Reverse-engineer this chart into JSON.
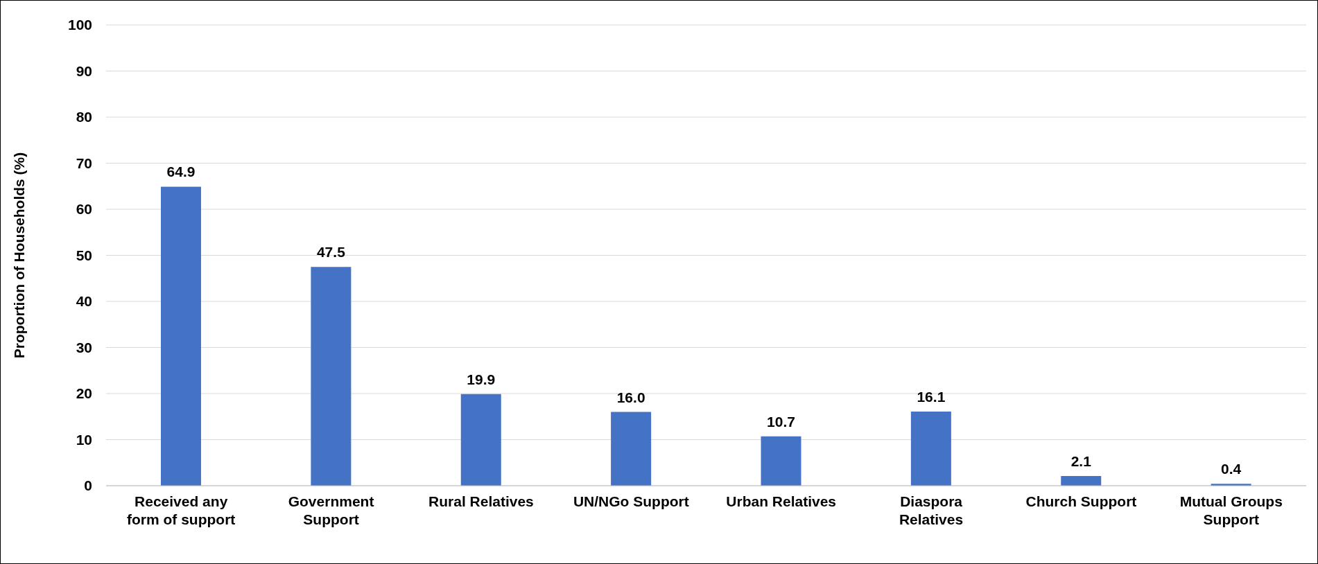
{
  "chart_data": {
    "type": "bar",
    "ylabel": "Proportion of Households (%)",
    "categories": [
      "Received any form of support",
      "Government Support",
      "Rural Relatives",
      "UN/NGo Support",
      "Urban Relatives",
      "Diaspora Relatives",
      "Church Support",
      "Mutual Groups Support"
    ],
    "values": [
      64.9,
      47.5,
      19.9,
      16.0,
      10.7,
      16.1,
      2.1,
      0.4
    ],
    "value_labels": [
      "64.9",
      "47.5",
      "19.9",
      "16.0",
      "10.7",
      "16.1",
      "2.1",
      "0.4"
    ],
    "color": "#4472c4",
    "ylim": [
      0,
      100
    ],
    "yticks": [
      0,
      10,
      20,
      30,
      40,
      50,
      60,
      70,
      80,
      90,
      100
    ],
    "grid": "y"
  }
}
